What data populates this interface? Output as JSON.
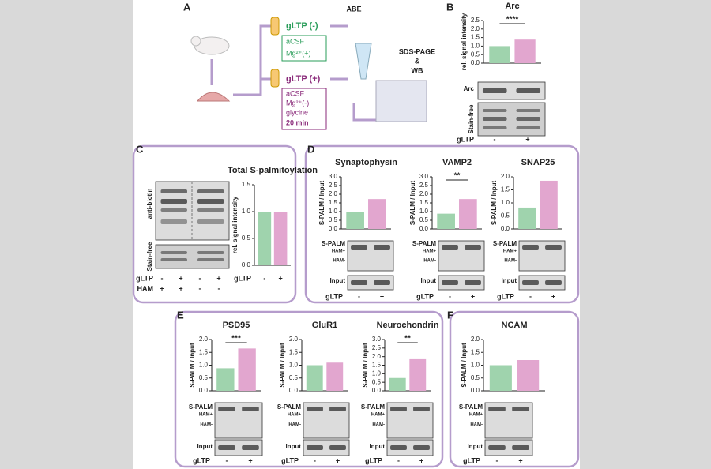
{
  "panel_labels": [
    "A",
    "B",
    "C",
    "D",
    "E",
    "F"
  ],
  "schematic": {
    "conditions": [
      {
        "name": "gLTP (-)",
        "lines": [
          "aCSF",
          "Mg²⁺(+)"
        ]
      },
      {
        "name": "gLTP (+)",
        "lines": [
          "aCSF",
          "Mg²⁺(-)",
          "glycine",
          "20 min"
        ]
      }
    ],
    "steps": [
      "ABE",
      "SDS-PAGE",
      "&",
      "WB"
    ]
  },
  "panel_c_lanes": [
    {
      "label": "gLTP",
      "lanes": [
        "-",
        "+",
        "-",
        "+"
      ]
    },
    {
      "label": "HAM",
      "lanes": [
        "+",
        "+",
        "-",
        "-"
      ]
    }
  ],
  "chart_data": [
    {
      "type": "bar",
      "title": "Arc",
      "ylabel": "rel. signal intensity",
      "xlabel": "gLTP",
      "categories": [
        "-",
        "+"
      ],
      "values": [
        1.0,
        1.38
      ],
      "colors": [
        "#9fd3ad",
        "#e2a6cf"
      ],
      "ylim": [
        0,
        2.5
      ],
      "yticks": [
        {
          "value": 0,
          "label": "0.0"
        },
        0.5,
        {
          "value": 1,
          "label": "1.0"
        },
        1.5,
        {
          "value": 2,
          "label": "2.0"
        },
        2.5
      ],
      "annotation": "****",
      "blot_labels": [
        "Arc",
        "Stain-free"
      ]
    },
    {
      "type": "bar",
      "title": "Total S-palmitoylation",
      "ylabel": "rel. signal intensity",
      "xlabel": "gLTP",
      "categories": [
        "-",
        "+"
      ],
      "values": [
        1.0,
        1.0
      ],
      "colors": [
        "#9fd3ad",
        "#e2a6cf"
      ],
      "ylim": [
        0,
        1.5
      ],
      "yticks": [
        {
          "value": 0,
          "label": "0.0"
        },
        0.5,
        {
          "value": 1,
          "label": "1.0"
        },
        1.5
      ],
      "blot_labels": [
        "anti-biotin",
        "Stain-free"
      ]
    },
    {
      "type": "bar",
      "title": "Synaptophysin",
      "ylabel": "S-PALM / Input",
      "xlabel": "gLTP",
      "categories": [
        "-",
        "+"
      ],
      "values": [
        1.0,
        1.72
      ],
      "colors": [
        "#9fd3ad",
        "#e2a6cf"
      ],
      "ylim": [
        0,
        3
      ],
      "yticks": [
        {
          "value": 0,
          "label": "0.0"
        },
        0.5,
        {
          "value": 1,
          "label": "1.0"
        },
        1.5,
        {
          "value": 2,
          "label": "2.0"
        },
        2.5,
        {
          "value": 3,
          "label": "3.0"
        }
      ],
      "blot_labels": [
        "S-PALM",
        "HAM+",
        "HAM-",
        "Input"
      ]
    },
    {
      "type": "bar",
      "title": "VAMP2",
      "ylabel": "S-PALM / Input",
      "xlabel": "gLTP",
      "categories": [
        "-",
        "+"
      ],
      "values": [
        0.88,
        1.72
      ],
      "colors": [
        "#9fd3ad",
        "#e2a6cf"
      ],
      "ylim": [
        0,
        3
      ],
      "yticks": [
        {
          "value": 0,
          "label": "0.0"
        },
        0.5,
        {
          "value": 1,
          "label": "1.0"
        },
        1.5,
        {
          "value": 2,
          "label": "2.0"
        },
        2.5,
        {
          "value": 3,
          "label": "3.0"
        }
      ],
      "annotation": "**",
      "blot_labels": [
        "S-PALM",
        "HAM+",
        "HAM-",
        "Input"
      ]
    },
    {
      "type": "bar",
      "title": "SNAP25",
      "ylabel": "S-PALM / Input",
      "xlabel": "gLTP",
      "categories": [
        "-",
        "+"
      ],
      "values": [
        0.82,
        1.85
      ],
      "colors": [
        "#9fd3ad",
        "#e2a6cf"
      ],
      "ylim": [
        0,
        2
      ],
      "yticks": [
        {
          "value": 0,
          "label": "0.0"
        },
        0.5,
        {
          "value": 1,
          "label": "1.0"
        },
        1.5,
        {
          "value": 2,
          "label": "2.0"
        }
      ],
      "blot_labels": [
        "S-PALM",
        "HAM+",
        "HAM-",
        "Input"
      ]
    },
    {
      "type": "bar",
      "title": "PSD95",
      "ylabel": "S-PALM / Input",
      "xlabel": "gLTP",
      "categories": [
        "-",
        "+"
      ],
      "values": [
        0.88,
        1.65
      ],
      "colors": [
        "#9fd3ad",
        "#e2a6cf"
      ],
      "ylim": [
        0,
        2
      ],
      "yticks": [
        {
          "value": 0,
          "label": "0.0"
        },
        0.5,
        {
          "value": 1,
          "label": "1.0"
        },
        1.5,
        {
          "value": 2,
          "label": "2.0"
        }
      ],
      "annotation": "***",
      "blot_labels": [
        "S-PALM",
        "HAM+",
        "HAM-",
        "Input"
      ]
    },
    {
      "type": "bar",
      "title": "GluR1",
      "ylabel": "S-PALM / Input",
      "xlabel": "gLTP",
      "categories": [
        "-",
        "+"
      ],
      "values": [
        1.0,
        1.1
      ],
      "colors": [
        "#9fd3ad",
        "#e2a6cf"
      ],
      "ylim": [
        0,
        2
      ],
      "yticks": [
        {
          "value": 0,
          "label": "0.0"
        },
        0.5,
        {
          "value": 1,
          "label": "1.0"
        },
        1.5,
        {
          "value": 2,
          "label": "2.0"
        }
      ],
      "blot_labels": [
        "S-PALM",
        "HAM+",
        "HAM-",
        "Input"
      ]
    },
    {
      "type": "bar",
      "title": "Neurochondrin",
      "ylabel": "S-PALM / Input",
      "xlabel": "gLTP",
      "categories": [
        "-",
        "+"
      ],
      "values": [
        0.75,
        1.85
      ],
      "colors": [
        "#9fd3ad",
        "#e2a6cf"
      ],
      "ylim": [
        0,
        3
      ],
      "yticks": [
        {
          "value": 0,
          "label": "0.0"
        },
        0.5,
        {
          "value": 1,
          "label": "1.0"
        },
        1.5,
        {
          "value": 2,
          "label": "2.0"
        },
        2.5,
        {
          "value": 3,
          "label": "3.0"
        }
      ],
      "annotation": "**",
      "blot_labels": [
        "S-PALM",
        "HAM+",
        "HAM-",
        "Input"
      ]
    },
    {
      "type": "bar",
      "title": "NCAM",
      "ylabel": "S-PALM / Input",
      "xlabel": "gLTP",
      "categories": [
        "-",
        "+"
      ],
      "values": [
        1.0,
        1.2
      ],
      "colors": [
        "#9fd3ad",
        "#e2a6cf"
      ],
      "ylim": [
        0,
        2
      ],
      "yticks": [
        {
          "value": 0,
          "label": "0.0"
        },
        0.5,
        {
          "value": 1,
          "label": "1.0"
        },
        1.5,
        {
          "value": 2,
          "label": "2.0"
        }
      ],
      "blot_labels": [
        "S-PALM",
        "HAM+",
        "HAM-",
        "Input"
      ]
    }
  ]
}
